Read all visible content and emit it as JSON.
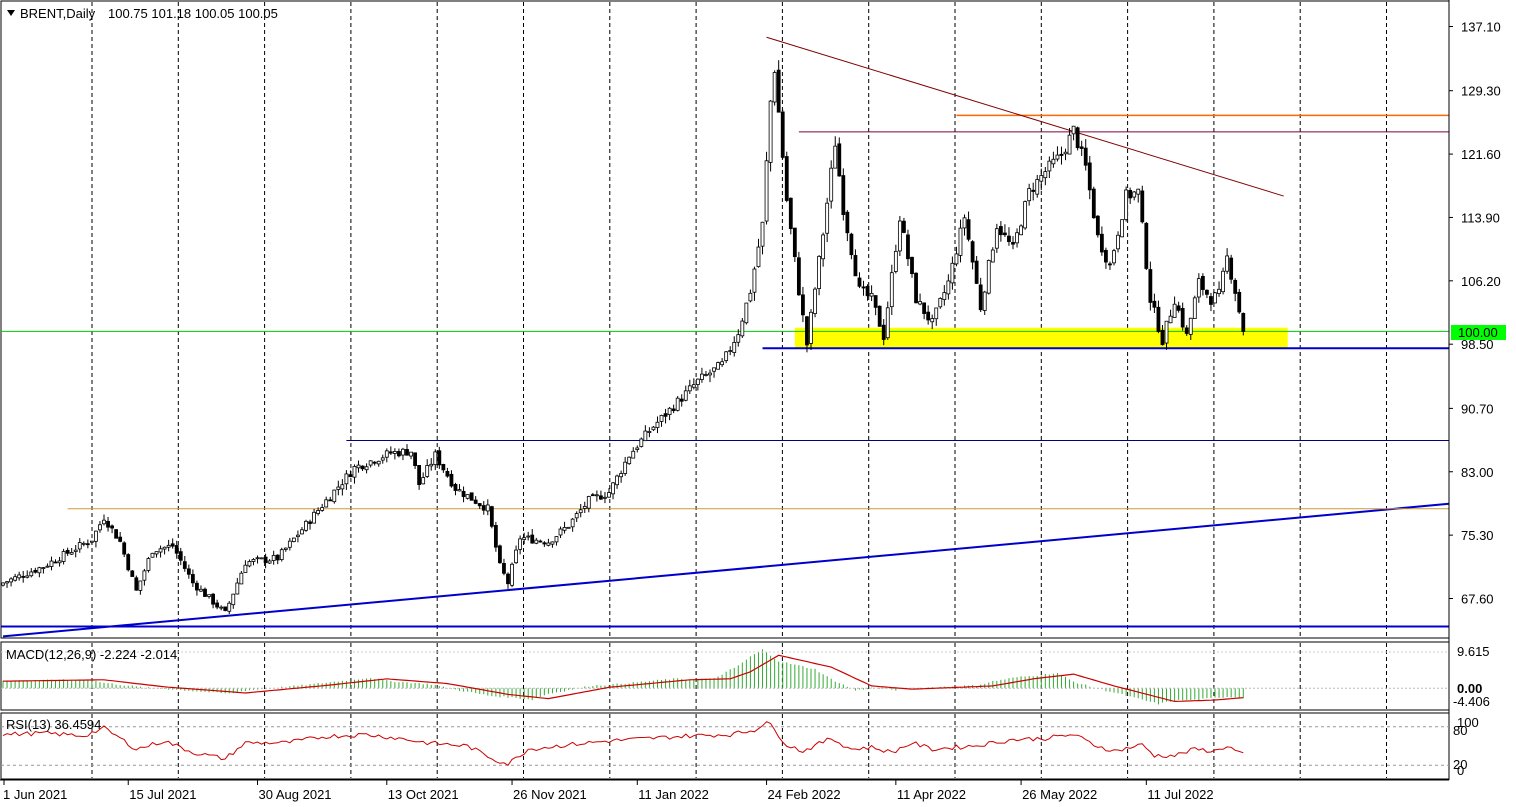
{
  "header": {
    "symbol": "BRENT,Daily",
    "ohlc": "100.75 101.18 100.05 100.05"
  },
  "price_marker": {
    "label": "100.00"
  },
  "macd_panel": {
    "title": "MACD(12,26,9) -2.224 -2.014",
    "yticks": [
      "9.615",
      "0.00",
      "-4.406"
    ],
    "zero_label": "0.00"
  },
  "rsi_panel": {
    "title": "RSI(13) 36.4594",
    "yticks": [
      "100",
      "80",
      "20",
      "0"
    ]
  },
  "colors": {
    "grid": "#000000",
    "support_zone": "#ffff00",
    "trend_blue": "#0000cc",
    "resistance_orange": "#ff6600",
    "downtrend": "#800000",
    "macd_signal": "#cc0000",
    "macd_hist": "#33aa33",
    "rsi": "#cc0000",
    "price_marker_bg": "#00ff00"
  },
  "chart_data": [
    {
      "type": "candlestick",
      "title": "BRENT,Daily",
      "ylim": [
        62.8,
        140.2
      ],
      "yticks": [
        137.1,
        129.3,
        121.6,
        113.9,
        106.2,
        98.5,
        90.7,
        83.0,
        75.3,
        67.6
      ],
      "ytick_labels": [
        "137.10",
        "129.30",
        "121.60",
        "113.90",
        "106.20",
        "98.50",
        "90.70",
        "83.00",
        "75.30",
        "67.60"
      ],
      "x_labels": [
        "1 Jun 2021",
        "15 Jul 2021",
        "30 Aug 2021",
        "13 Oct 2021",
        "26 Nov 2021",
        "11 Jan 2022",
        "24 Feb 2022",
        "11 Apr 2022",
        "26 May 2022",
        "11 Jul 2022"
      ],
      "x_label_bars": [
        0,
        31,
        63,
        95,
        126,
        157,
        189,
        221,
        252,
        283
      ],
      "grid": "vertical dashed",
      "close_anchors": [
        [
          0,
          69.5
        ],
        [
          10,
          71.5
        ],
        [
          22,
          74.8
        ],
        [
          25,
          77.5
        ],
        [
          29,
          74.5
        ],
        [
          33,
          68.5
        ],
        [
          37,
          73.5
        ],
        [
          42,
          74.0
        ],
        [
          47,
          69.5
        ],
        [
          55,
          65.8
        ],
        [
          60,
          72.0
        ],
        [
          68,
          72.5
        ],
        [
          74,
          76.0
        ],
        [
          80,
          79.5
        ],
        [
          87,
          83.5
        ],
        [
          96,
          85.3
        ],
        [
          101,
          85.5
        ],
        [
          103,
          81.5
        ],
        [
          107,
          85.0
        ],
        [
          112,
          81.0
        ],
        [
          120,
          78.5
        ],
        [
          123,
          71.5
        ],
        [
          125,
          69.5
        ],
        [
          128,
          75.0
        ],
        [
          135,
          74.5
        ],
        [
          140,
          76.5
        ],
        [
          145,
          79.5
        ],
        [
          150,
          80.5
        ],
        [
          155,
          85.0
        ],
        [
          160,
          88.0
        ],
        [
          166,
          91.0
        ],
        [
          172,
          94.0
        ],
        [
          178,
          96.0
        ],
        [
          182,
          100.0
        ],
        [
          185,
          105.0
        ],
        [
          188,
          113.0
        ],
        [
          190,
          128.0
        ],
        [
          191,
          132.0
        ],
        [
          194,
          116.0
        ],
        [
          197,
          105.0
        ],
        [
          199,
          98.5
        ],
        [
          203,
          112.0
        ],
        [
          206,
          123.0
        ],
        [
          208,
          115.0
        ],
        [
          212,
          105.0
        ],
        [
          215,
          104.0
        ],
        [
          218,
          99.5
        ],
        [
          222,
          114.0
        ],
        [
          226,
          104.0
        ],
        [
          230,
          101.0
        ],
        [
          234,
          106.0
        ],
        [
          238,
          114.0
        ],
        [
          242,
          103.0
        ],
        [
          246,
          113.0
        ],
        [
          250,
          110.0
        ],
        [
          254,
          117.0
        ],
        [
          258,
          119.5
        ],
        [
          262,
          121.5
        ],
        [
          265,
          124.5
        ],
        [
          268,
          120.0
        ],
        [
          271,
          111.5
        ],
        [
          274,
          108.0
        ],
        [
          278,
          116.5
        ],
        [
          281,
          117.0
        ],
        [
          284,
          104.0
        ],
        [
          287,
          99.0
        ],
        [
          290,
          104.0
        ],
        [
          293,
          99.5
        ],
        [
          296,
          106.0
        ],
        [
          299,
          104.0
        ],
        [
          301,
          104.5
        ],
        [
          303,
          109.0
        ],
        [
          305,
          105.0
        ],
        [
          307,
          100.05
        ]
      ],
      "annotations": [
        {
          "type": "trendline",
          "from": [
            0,
            63.0
          ],
          "to": [
            400,
            81.0
          ],
          "color": "trend_blue"
        },
        {
          "type": "hline",
          "y": 64.2,
          "color": "trend_blue"
        },
        {
          "type": "hline",
          "y": 86.8,
          "from_bar": 85,
          "color": "navy"
        },
        {
          "type": "hline",
          "y": 78.5,
          "from_bar": 16,
          "color": "orange-thin"
        },
        {
          "type": "hline",
          "y": 100.05,
          "color": "green"
        },
        {
          "type": "hline",
          "y": 98.0,
          "from_bar": 188,
          "color": "trend_blue"
        },
        {
          "type": "zone",
          "from_bar": 196,
          "to_bar": 318,
          "y1": 98.0,
          "y2": 100.5,
          "color": "support_zone"
        },
        {
          "type": "hline",
          "y": 124.3,
          "from_bar": 197,
          "color": "purple"
        },
        {
          "type": "hline",
          "y": 126.3,
          "from_bar": 236,
          "color": "resistance_orange"
        },
        {
          "type": "trendline",
          "from": [
            189,
            135.8
          ],
          "to": [
            317,
            116.5
          ],
          "color": "downtrend"
        }
      ]
    },
    {
      "type": "macd",
      "title": "MACD(12,26,9) -2.224 -2.014",
      "ylim": [
        -4.406,
        9.615
      ],
      "signal_anchors": [
        [
          0,
          1.5
        ],
        [
          25,
          1.8
        ],
        [
          40,
          0.3
        ],
        [
          60,
          -1.0
        ],
        [
          80,
          0.6
        ],
        [
          95,
          2.0
        ],
        [
          110,
          1.0
        ],
        [
          125,
          -1.3
        ],
        [
          135,
          -2.2
        ],
        [
          150,
          0.2
        ],
        [
          170,
          1.8
        ],
        [
          180,
          2.0
        ],
        [
          185,
          3.5
        ],
        [
          192,
          7.0
        ],
        [
          205,
          4.5
        ],
        [
          215,
          0.5
        ],
        [
          225,
          -0.2
        ],
        [
          245,
          0.5
        ],
        [
          255,
          2.0
        ],
        [
          265,
          3.0
        ],
        [
          275,
          0.5
        ],
        [
          290,
          -2.8
        ],
        [
          300,
          -2.5
        ],
        [
          307,
          -2.0
        ]
      ]
    },
    {
      "type": "line",
      "title": "RSI(13) 36.4594",
      "ylim": [
        0,
        100
      ],
      "levels": [
        80,
        20
      ],
      "values_anchors": [
        [
          0,
          68
        ],
        [
          10,
          70
        ],
        [
          20,
          66
        ],
        [
          25,
          78
        ],
        [
          30,
          58
        ],
        [
          33,
          45
        ],
        [
          40,
          58
        ],
        [
          47,
          40
        ],
        [
          55,
          30
        ],
        [
          60,
          55
        ],
        [
          70,
          55
        ],
        [
          80,
          65
        ],
        [
          90,
          68
        ],
        [
          98,
          62
        ],
        [
          105,
          55
        ],
        [
          115,
          50
        ],
        [
          122,
          28
        ],
        [
          125,
          22
        ],
        [
          130,
          45
        ],
        [
          140,
          52
        ],
        [
          150,
          58
        ],
        [
          160,
          62
        ],
        [
          170,
          66
        ],
        [
          180,
          68
        ],
        [
          186,
          75
        ],
        [
          189,
          88
        ],
        [
          190,
          82
        ],
        [
          194,
          52
        ],
        [
          198,
          42
        ],
        [
          205,
          62
        ],
        [
          210,
          45
        ],
        [
          215,
          48
        ],
        [
          220,
          40
        ],
        [
          225,
          55
        ],
        [
          230,
          45
        ],
        [
          240,
          50
        ],
        [
          250,
          60
        ],
        [
          258,
          62
        ],
        [
          265,
          68
        ],
        [
          270,
          52
        ],
        [
          275,
          42
        ],
        [
          282,
          52
        ],
        [
          285,
          35
        ],
        [
          290,
          35
        ],
        [
          295,
          45
        ],
        [
          300,
          42
        ],
        [
          303,
          50
        ],
        [
          307,
          36
        ]
      ]
    }
  ]
}
